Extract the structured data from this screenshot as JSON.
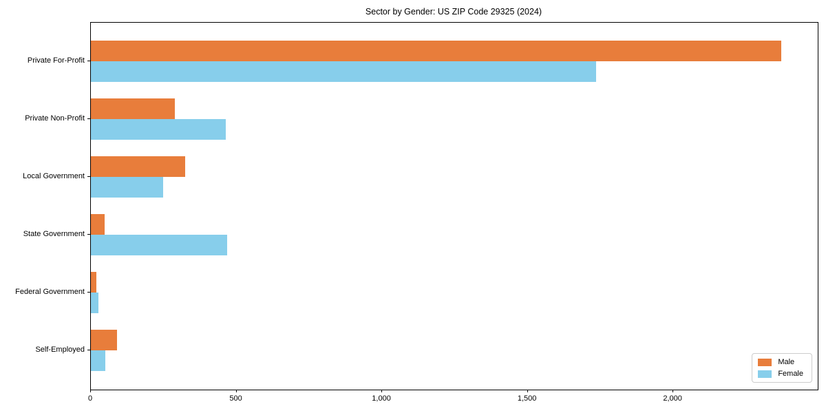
{
  "title": "Sector by Gender: US ZIP Code 29325 (2024)",
  "colors": {
    "male": "#e87d3b",
    "female": "#87ceeb",
    "spine": "#000000",
    "legend_border": "#cccccc",
    "background": "#ffffff"
  },
  "chart_data": {
    "type": "bar",
    "orientation": "horizontal",
    "title": "Sector by Gender: US ZIP Code 29325 (2024)",
    "xlabel": "",
    "ylabel": "",
    "categories": [
      "Private For-Profit",
      "Private Non-Profit",
      "Local Government",
      "State Government",
      "Federal Government",
      "Self-Employed"
    ],
    "series": [
      {
        "name": "Male",
        "color": "#e87d3b",
        "values": [
          2370,
          288,
          323,
          47,
          20,
          90
        ]
      },
      {
        "name": "Female",
        "color": "#87ceeb",
        "values": [
          1735,
          463,
          248,
          469,
          25,
          50
        ]
      }
    ],
    "xlim": [
      0,
      2496
    ],
    "x_ticks": [
      0,
      500,
      1000,
      1500,
      2000
    ],
    "x_tick_labels": [
      "0",
      "500",
      "1,000",
      "1,500",
      "2,000"
    ],
    "grid": false,
    "legend_position": "lower right",
    "legend_entries": [
      "Male",
      "Female"
    ]
  }
}
